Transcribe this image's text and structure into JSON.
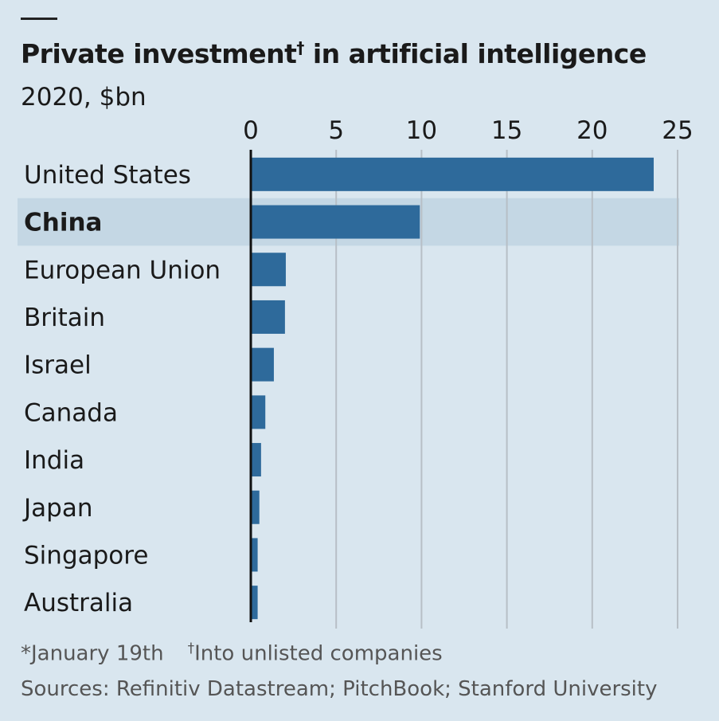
{
  "chart_data": {
    "type": "bar",
    "orientation": "horizontal",
    "title": "Private investment",
    "title_mark": "†",
    "title_rest": " in artificial intelligence",
    "subtitle": "2020, $bn",
    "categories": [
      "United States",
      "China",
      "European Union",
      "Britain",
      "Israel",
      "Canada",
      "India",
      "Japan",
      "Singapore",
      "Australia"
    ],
    "values": [
      23.6,
      9.9,
      2.05,
      2.0,
      1.35,
      0.85,
      0.6,
      0.5,
      0.4,
      0.4
    ],
    "highlight": "China",
    "xlim": [
      0,
      25
    ],
    "xticks": [
      0,
      5,
      10,
      15,
      20,
      25
    ],
    "grid": true,
    "colors": {
      "bar": "#2e6a9b",
      "background": "#d9e6ef",
      "highlight_band": "#c4d7e4",
      "grid": "#b7bfc6"
    }
  },
  "footnotes": {
    "note1": "*January 19th",
    "note2_mark": "†",
    "note2": "Into unlisted companies",
    "sources": "Sources: Refinitiv Datastream; PitchBook; Stanford University"
  }
}
